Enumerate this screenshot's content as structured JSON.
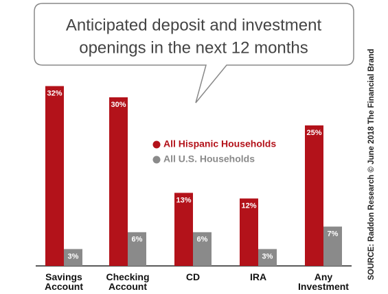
{
  "chart_data": {
    "type": "bar",
    "title_lines": [
      "Anticipated deposit and investment",
      "openings in the next 12 months"
    ],
    "categories": [
      "Savings Account",
      "Checking Account",
      "CD",
      "IRA",
      "Any Investment"
    ],
    "series": [
      {
        "name": "All Hispanic Households",
        "color": "#b3121a",
        "values": [
          32,
          30,
          13,
          12,
          25
        ],
        "value_labels": [
          "32%",
          "30%",
          "13%",
          "12%",
          "25%"
        ]
      },
      {
        "name": "All U.S. Households",
        "color": "#8a8a8a",
        "values": [
          3,
          6,
          6,
          3,
          7
        ],
        "value_labels": [
          "3%",
          "6%",
          "6%",
          "3%",
          "7%"
        ]
      }
    ],
    "source": "SOURCE: Raddon Research © June 2018 The Financial Brand"
  }
}
